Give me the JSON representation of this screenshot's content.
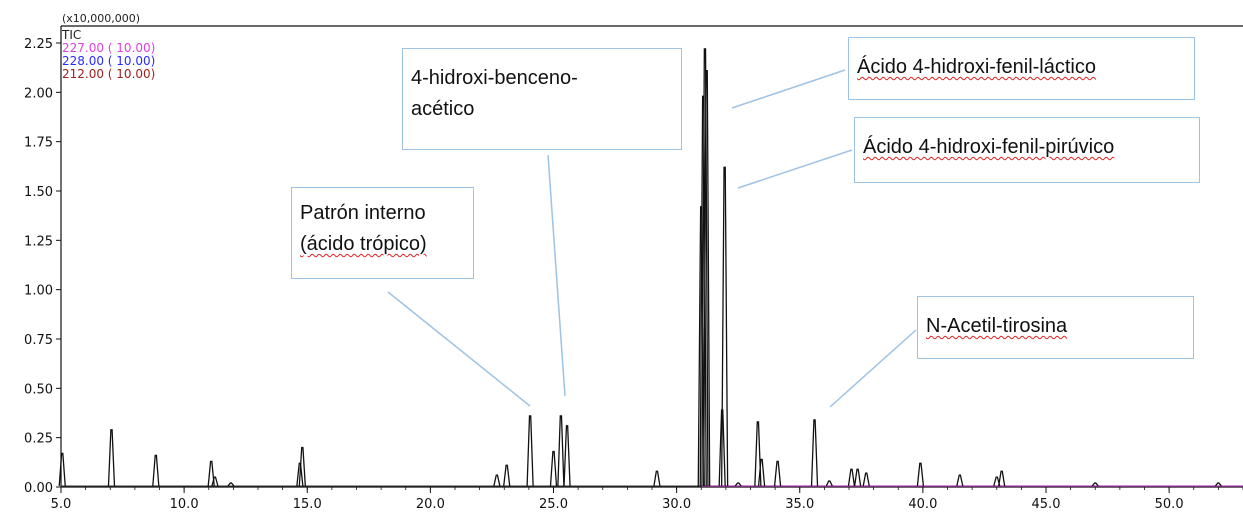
{
  "chart_data": {
    "type": "line",
    "y_scale_label": "(x10,000,000)",
    "xlim": [
      5.0,
      53.0
    ],
    "ylim": [
      0.0,
      2.3
    ],
    "x_ticks": [
      {
        "v": 5.0,
        "label": "5.0"
      },
      {
        "v": 10.0,
        "label": "10.0"
      },
      {
        "v": 15.0,
        "label": "15.0"
      },
      {
        "v": 20.0,
        "label": "20.0"
      },
      {
        "v": 25.0,
        "label": "25.0"
      },
      {
        "v": 30.0,
        "label": "30.0"
      },
      {
        "v": 35.0,
        "label": "35.0"
      },
      {
        "v": 40.0,
        "label": "40.0"
      },
      {
        "v": 45.0,
        "label": "45.0"
      },
      {
        "v": 50.0,
        "label": "50.0"
      }
    ],
    "y_ticks": [
      {
        "v": 0.0,
        "label": "0.00"
      },
      {
        "v": 0.25,
        "label": "0.25"
      },
      {
        "v": 0.5,
        "label": "0.50"
      },
      {
        "v": 0.75,
        "label": "0.75"
      },
      {
        "v": 1.0,
        "label": "1.00"
      },
      {
        "v": 1.25,
        "label": "1.25"
      },
      {
        "v": 1.5,
        "label": "1.50"
      },
      {
        "v": 1.75,
        "label": "1.75"
      },
      {
        "v": 2.0,
        "label": "2.00"
      },
      {
        "v": 2.25,
        "label": "2.25"
      }
    ],
    "legend": [
      {
        "label": "TIC",
        "color": "#222222"
      },
      {
        "label": "227.00 ( 10.00)",
        "color": "#e040e0"
      },
      {
        "label": "228.00 ( 10.00)",
        "color": "#2a2aff"
      },
      {
        "label": "212.00 ( 10.00)",
        "color": "#a02020"
      }
    ],
    "series": [
      {
        "name": "TIC",
        "color": "#111111",
        "peaks": [
          {
            "x": 5.05,
            "y": 0.17
          },
          {
            "x": 7.05,
            "y": 0.29
          },
          {
            "x": 8.85,
            "y": 0.16
          },
          {
            "x": 11.1,
            "y": 0.13
          },
          {
            "x": 11.25,
            "y": 0.05
          },
          {
            "x": 11.9,
            "y": 0.02
          },
          {
            "x": 14.8,
            "y": 0.2
          },
          {
            "x": 14.7,
            "y": 0.12
          },
          {
            "x": 22.7,
            "y": 0.06
          },
          {
            "x": 23.1,
            "y": 0.11
          },
          {
            "x": 24.05,
            "y": 0.36
          },
          {
            "x": 25.0,
            "y": 0.18
          },
          {
            "x": 25.3,
            "y": 0.36
          },
          {
            "x": 25.55,
            "y": 0.31
          },
          {
            "x": 29.2,
            "y": 0.08
          },
          {
            "x": 31.0,
            "y": 1.42
          },
          {
            "x": 31.08,
            "y": 1.98
          },
          {
            "x": 31.15,
            "y": 2.22
          },
          {
            "x": 31.22,
            "y": 2.11
          },
          {
            "x": 31.85,
            "y": 0.39
          },
          {
            "x": 31.95,
            "y": 1.62
          },
          {
            "x": 32.5,
            "y": 0.02
          },
          {
            "x": 33.3,
            "y": 0.33
          },
          {
            "x": 33.45,
            "y": 0.14
          },
          {
            "x": 34.1,
            "y": 0.13
          },
          {
            "x": 35.6,
            "y": 0.34
          },
          {
            "x": 36.2,
            "y": 0.03
          },
          {
            "x": 37.1,
            "y": 0.09
          },
          {
            "x": 37.35,
            "y": 0.09
          },
          {
            "x": 37.7,
            "y": 0.07
          },
          {
            "x": 39.9,
            "y": 0.12
          },
          {
            "x": 41.5,
            "y": 0.06
          },
          {
            "x": 43.0,
            "y": 0.05
          },
          {
            "x": 43.2,
            "y": 0.08
          },
          {
            "x": 47.0,
            "y": 0.02
          },
          {
            "x": 52.0,
            "y": 0.02
          }
        ]
      }
    ]
  },
  "annotations": {
    "patron": {
      "line1": "Patrón interno",
      "line2": "(ácido trópico)"
    },
    "benceno": {
      "line1": "4-hidroxi-benceno-",
      "line2": "acético"
    },
    "lactico": {
      "text": "Ácido 4-hidroxi-fenil-láctico"
    },
    "piruvico": {
      "text": "Ácido 4-hidroxi-fenil-pirúvico"
    },
    "acetil": {
      "text": "N-Acetil-tirosina"
    }
  }
}
